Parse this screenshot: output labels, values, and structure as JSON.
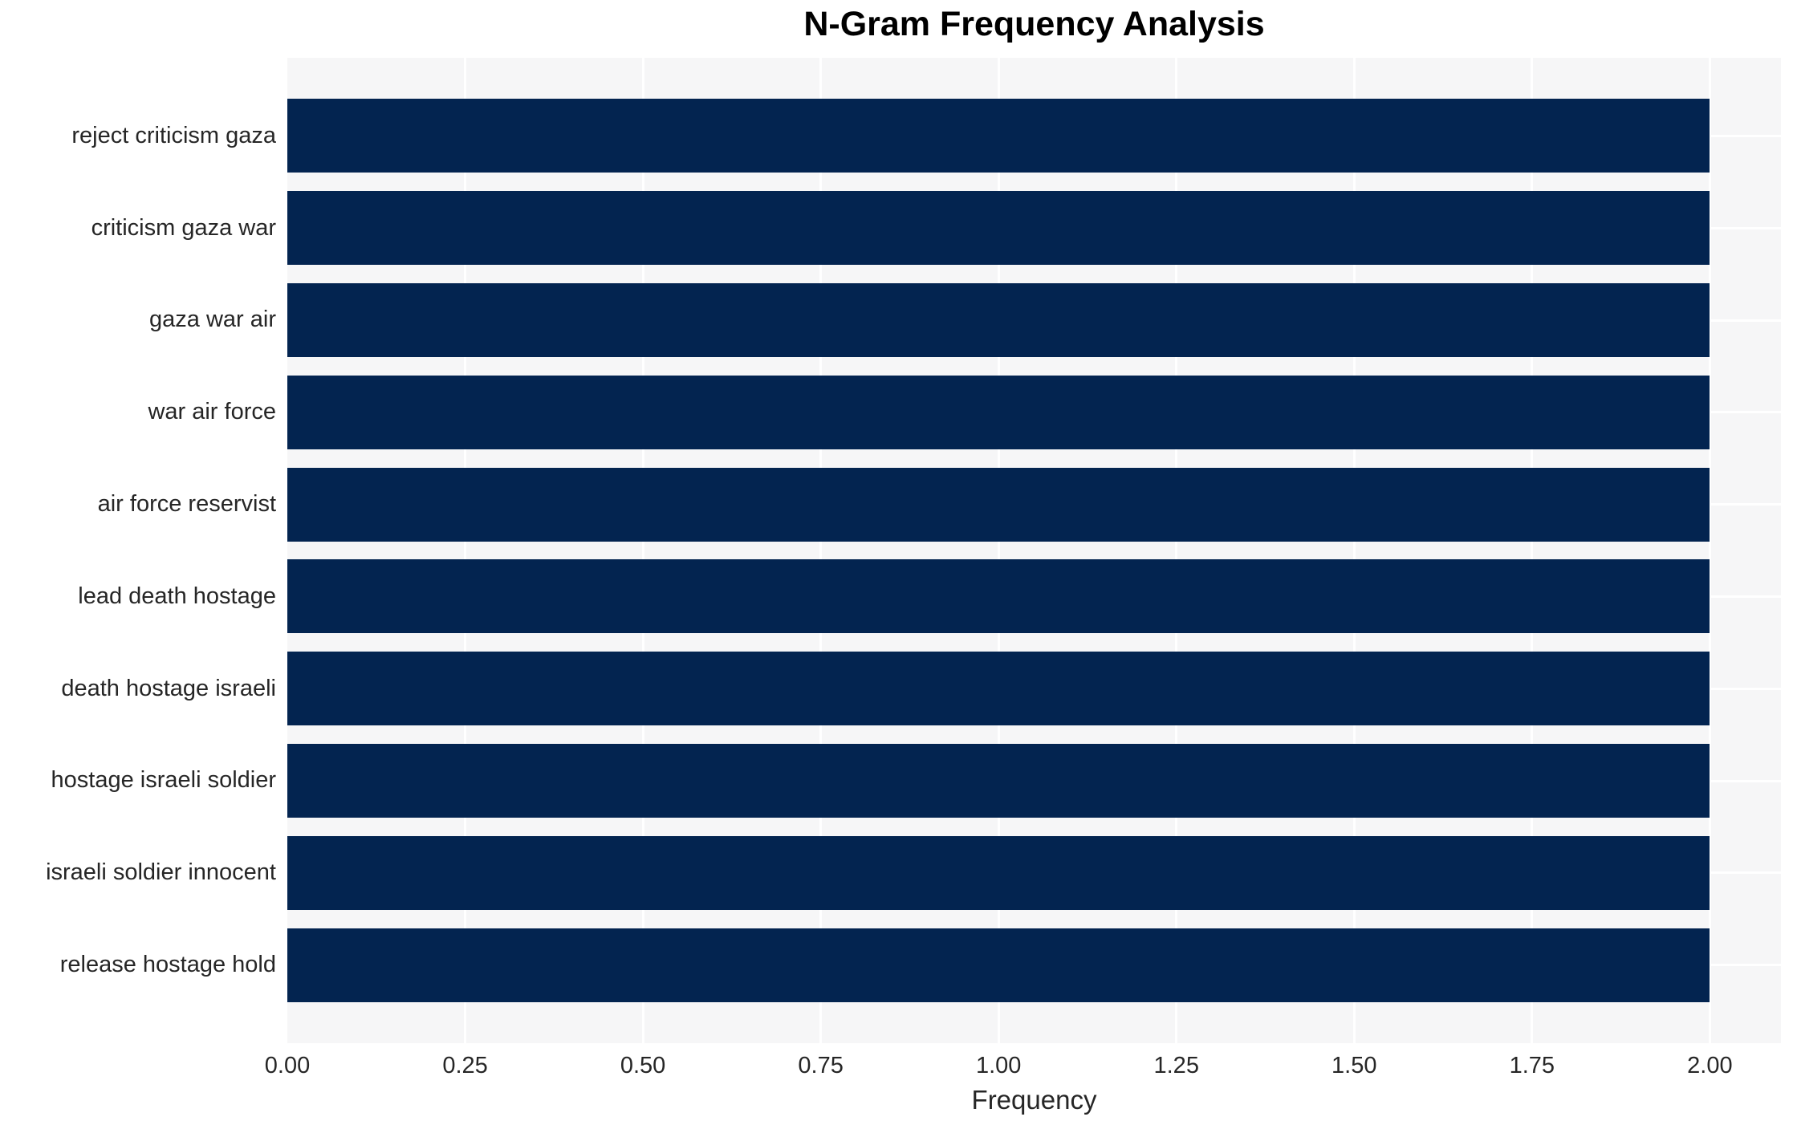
{
  "chart_data": {
    "type": "bar",
    "orientation": "horizontal",
    "title": "N-Gram Frequency Analysis",
    "xlabel": "Frequency",
    "ylabel": "",
    "categories": [
      "reject criticism gaza",
      "criticism gaza war",
      "gaza war air",
      "war air force",
      "air force reservist",
      "lead death hostage",
      "death hostage israeli",
      "hostage israeli soldier",
      "israeli soldier innocent",
      "release hostage hold"
    ],
    "values": [
      2.0,
      2.0,
      2.0,
      2.0,
      2.0,
      2.0,
      2.0,
      2.0,
      2.0,
      2.0
    ],
    "xlim": [
      0,
      2.1
    ],
    "xticks": [
      "0.00",
      "0.25",
      "0.50",
      "0.75",
      "1.00",
      "1.25",
      "1.50",
      "1.75",
      "2.00"
    ],
    "xtick_values": [
      0,
      0.25,
      0.5,
      0.75,
      1.0,
      1.25,
      1.5,
      1.75,
      2.0
    ],
    "grid": true,
    "grid_axis": "both",
    "legend": false,
    "colors": {
      "bar": "#032450",
      "plot_background": "#f6f6f7",
      "figure_background": "#ffffff",
      "gridline": "#ffffff",
      "tick_text": "#262626",
      "title_text": "#000000"
    }
  }
}
